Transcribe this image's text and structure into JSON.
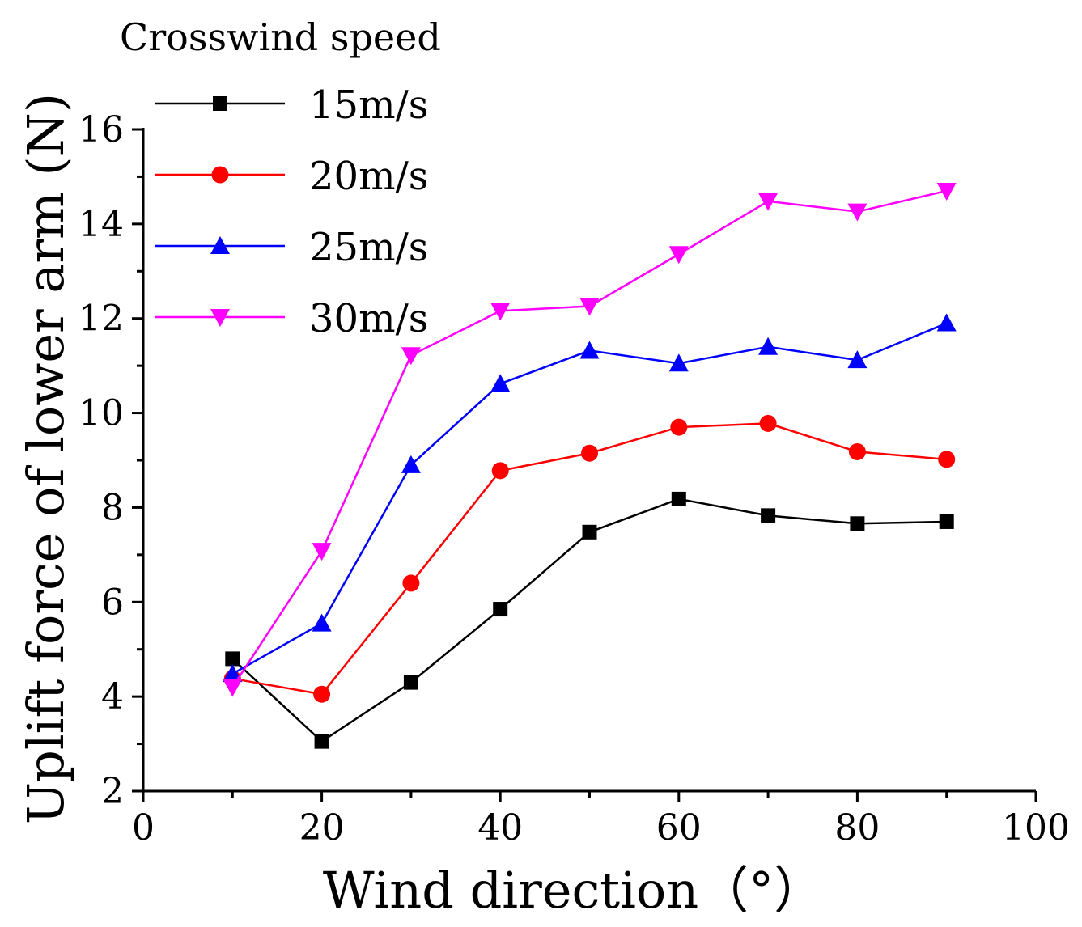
{
  "chart_data": {
    "type": "line",
    "title": "",
    "xlabel": "Wind direction（°）",
    "ylabel": "Uplift force of lower arm (N)",
    "xlim": [
      0,
      100
    ],
    "ylim": [
      2,
      16
    ],
    "xticks": [
      0,
      20,
      40,
      60,
      80,
      100
    ],
    "yticks": [
      2,
      4,
      6,
      8,
      10,
      12,
      14,
      16
    ],
    "x": [
      10,
      20,
      30,
      40,
      50,
      60,
      70,
      80,
      90
    ],
    "legend_title": "Crosswind speed",
    "legend_position": "top-left",
    "series": [
      {
        "name": "15m/s",
        "color": "#000000",
        "marker": "square",
        "values": [
          4.8,
          3.05,
          4.3,
          5.85,
          7.48,
          8.18,
          7.83,
          7.66,
          7.7
        ]
      },
      {
        "name": "20m/s",
        "color": "#ff0000",
        "marker": "circle",
        "values": [
          4.38,
          4.05,
          6.4,
          8.78,
          9.15,
          9.7,
          9.78,
          9.18,
          9.02
        ]
      },
      {
        "name": "25m/s",
        "color": "#0000ff",
        "marker": "triangle-up",
        "values": [
          4.48,
          5.55,
          8.9,
          10.62,
          11.32,
          11.05,
          11.4,
          11.12,
          11.9
        ]
      },
      {
        "name": "30m/s",
        "color": "#ff00ff",
        "marker": "triangle-down",
        "values": [
          4.2,
          7.08,
          11.22,
          12.16,
          12.26,
          13.36,
          14.48,
          14.26,
          14.7
        ]
      }
    ]
  }
}
